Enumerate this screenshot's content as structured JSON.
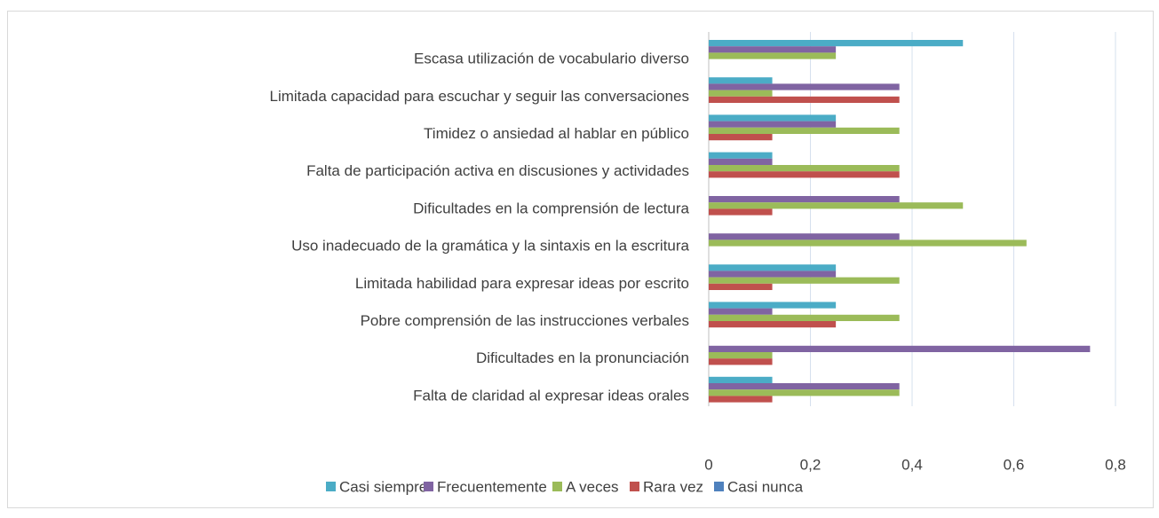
{
  "chart_data": {
    "type": "hbar",
    "categories": [
      "Escasa utilización de vocabulario diverso",
      "Limitada capacidad para escuchar y seguir las conversaciones",
      "Timidez o ansiedad al hablar en público",
      "Falta de participación activa en discusiones y actividades",
      "Dificultades en la comprensión de lectura",
      "Uso inadecuado de la gramática y la sintaxis en la escritura",
      "Limitada habilidad para expresar ideas por escrito",
      "Pobre comprensión de las instrucciones verbales",
      "Dificultades en la pronunciación",
      "Falta de claridad al expresar ideas orales"
    ],
    "series": [
      {
        "name": "Casi siempre",
        "color": "#4bacc6",
        "values": [
          0.5,
          0.125,
          0.25,
          0.125,
          0,
          0,
          0.25,
          0.25,
          0,
          0.125
        ]
      },
      {
        "name": "Frecuentemente",
        "color": "#8064a2",
        "values": [
          0.25,
          0.375,
          0.25,
          0.125,
          0.375,
          0.375,
          0.25,
          0.125,
          0.75,
          0.375
        ]
      },
      {
        "name": "A veces",
        "color": "#9bbb59",
        "values": [
          0.25,
          0.125,
          0.375,
          0.375,
          0.5,
          0.625,
          0.375,
          0.375,
          0.125,
          0.375
        ]
      },
      {
        "name": "Rara vez",
        "color": "#c0504d",
        "values": [
          0,
          0.375,
          0.125,
          0.375,
          0.125,
          0,
          0.125,
          0.25,
          0.125,
          0.125
        ]
      },
      {
        "name": "Casi nunca",
        "color": "#4f81bd",
        "values": [
          0,
          0,
          0,
          0,
          0,
          0,
          0,
          0,
          0,
          0
        ]
      }
    ],
    "xlim": [
      0,
      0.8
    ],
    "xticks": [
      0,
      {
        "value": 0.2,
        "label": "0,2"
      },
      {
        "value": 0.4,
        "label": "0,4"
      },
      {
        "value": 0.6,
        "label": "0,6"
      },
      {
        "value": 0.8,
        "label": "0,8"
      }
    ],
    "grid": true,
    "legend": "bottom"
  }
}
